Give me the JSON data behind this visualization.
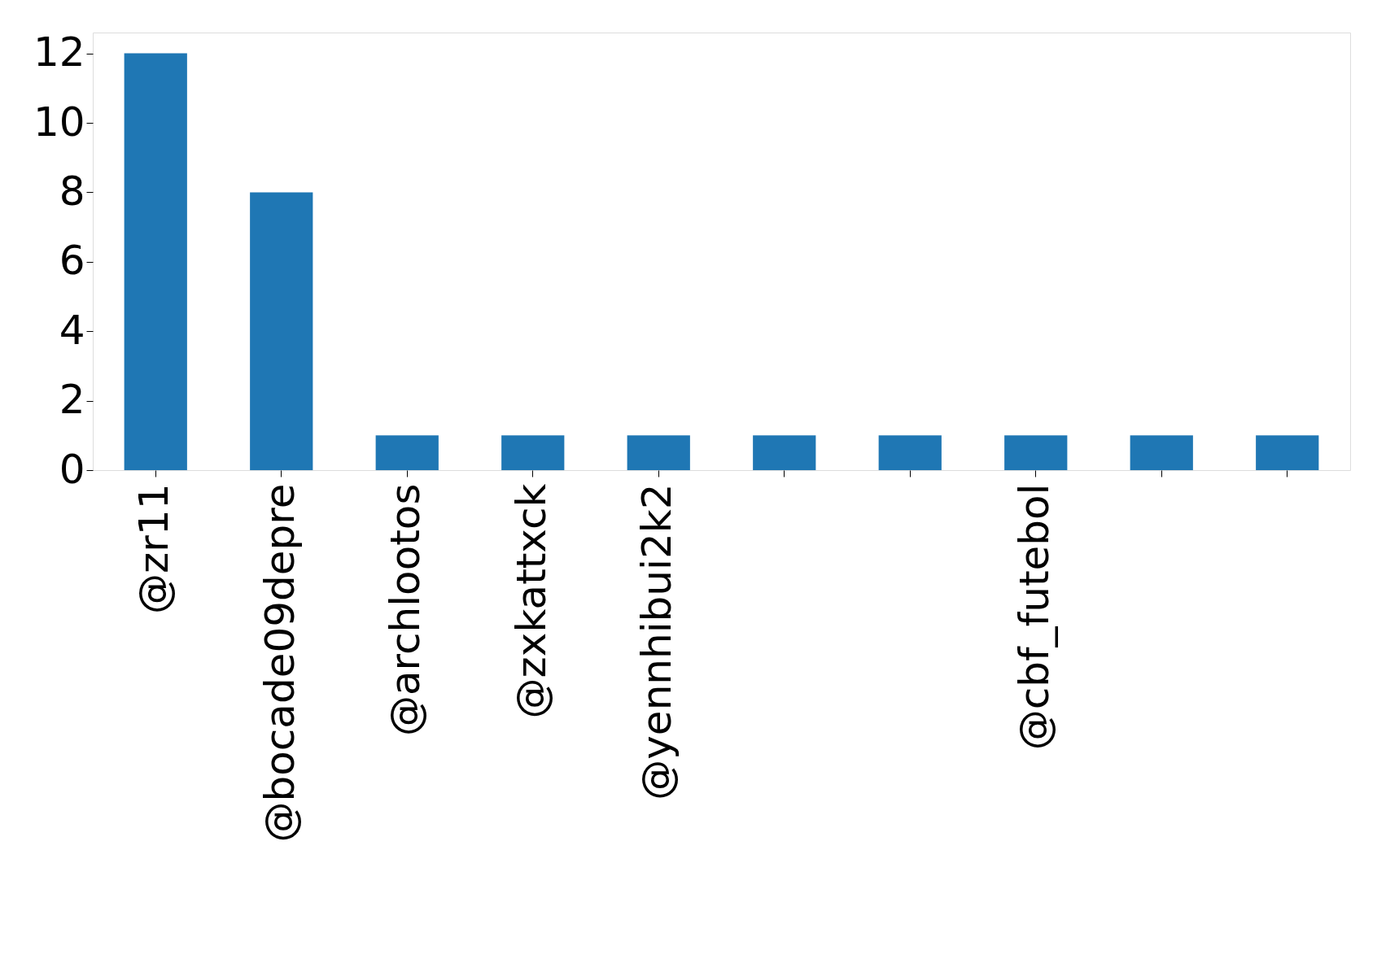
{
  "chart_data": {
    "type": "bar",
    "categories": [
      "@zr11",
      "@bocade09depre",
      "@archlootos",
      "@zxkattxck",
      "@yennhibui2k2",
      null,
      null,
      "@cbf_futebol",
      null,
      null
    ],
    "values": [
      12,
      8,
      1,
      1,
      1,
      1,
      1,
      1,
      1,
      1
    ],
    "color": "#1f77b4",
    "ylim": [
      0,
      12.6
    ],
    "yticks": [
      0,
      2,
      4,
      6,
      8,
      10,
      12
    ],
    "grid": false
  }
}
